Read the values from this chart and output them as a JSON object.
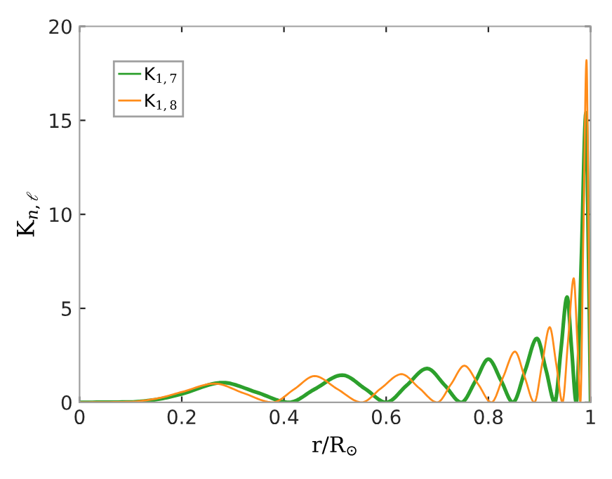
{
  "chart_data": {
    "type": "line",
    "xlabel": "r/R$_{⊙}$",
    "ylabel": "K$_{n,ℓ}$",
    "xlim": [
      0,
      1
    ],
    "ylim": [
      0,
      20
    ],
    "xticks": [
      0,
      0.2,
      0.4,
      0.6,
      0.8,
      1
    ],
    "yticks": [
      0,
      5,
      10,
      15,
      20
    ],
    "grid": false,
    "legend": "top left",
    "line_style": "solid",
    "marker": "none",
    "series": [
      {
        "name": "K$_{1,7}$",
        "color": "#2ca02c",
        "x": [
          0,
          0.1,
          0.15,
          0.2,
          0.28,
          0.345,
          0.41,
          0.46,
          0.514,
          0.56,
          0.6,
          0.64,
          0.68,
          0.715,
          0.747,
          0.775,
          0.8,
          0.825,
          0.848,
          0.872,
          0.895,
          0.913,
          0.93,
          0.942,
          0.954,
          0.963,
          0.972,
          0.982,
          0.991,
          0.996,
          1.0
        ],
        "values": [
          0,
          0.02,
          0.15,
          0.45,
          1.05,
          0.55,
          0,
          0.7,
          1.45,
          0.7,
          0,
          0.9,
          1.8,
          0.9,
          0,
          1.15,
          2.3,
          1.15,
          0,
          1.7,
          3.4,
          1.7,
          0,
          2.8,
          5.6,
          2.8,
          0,
          7.7,
          15.4,
          7.7,
          0
        ]
      },
      {
        "name": "K$_{1,8}$",
        "color": "#ff8c1a",
        "x": [
          0,
          0.1,
          0.15,
          0.2,
          0.265,
          0.32,
          0.378,
          0.42,
          0.46,
          0.505,
          0.552,
          0.59,
          0.63,
          0.665,
          0.7,
          0.727,
          0.753,
          0.78,
          0.806,
          0.829,
          0.852,
          0.871,
          0.89,
          0.905,
          0.92,
          0.933,
          0.945,
          0.956,
          0.967,
          0.974,
          0.98,
          0.986,
          0.992,
          0.996,
          1.0
        ],
        "values": [
          0,
          0.03,
          0.2,
          0.55,
          1.0,
          0.5,
          0,
          0.7,
          1.4,
          0.7,
          0,
          0.75,
          1.5,
          0.75,
          0,
          0.97,
          1.95,
          0.97,
          0,
          1.35,
          2.7,
          1.35,
          0,
          2.0,
          4.0,
          2.0,
          0,
          3.3,
          6.6,
          3.3,
          0,
          9.1,
          18.2,
          9.1,
          0
        ]
      }
    ]
  }
}
